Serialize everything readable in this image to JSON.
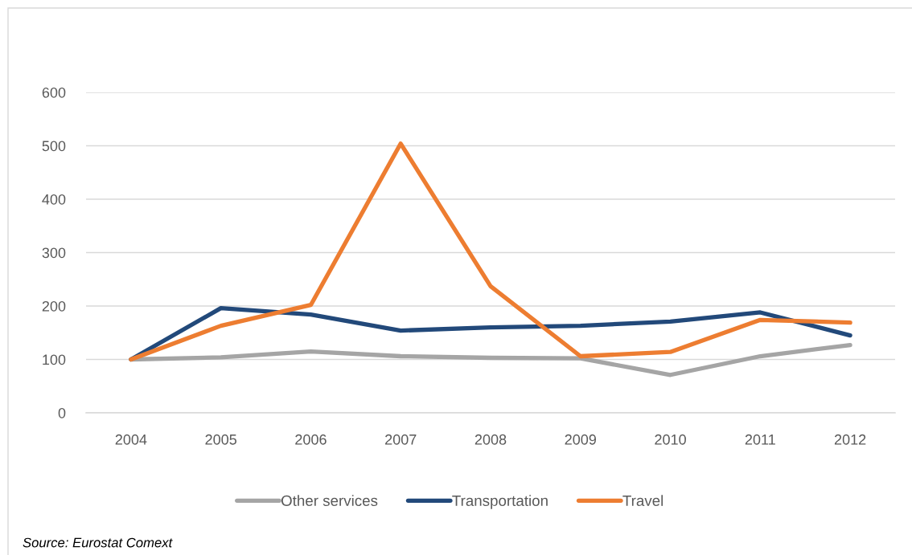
{
  "chart_data": {
    "type": "line",
    "categories": [
      "2004",
      "2005",
      "2006",
      "2007",
      "2008",
      "2009",
      "2010",
      "2011",
      "2012"
    ],
    "series": [
      {
        "name": "Other services",
        "color": "#a5a5a5",
        "values": [
          100,
          104,
          115,
          106,
          103,
          102,
          71,
          106,
          127
        ]
      },
      {
        "name": "Transportation",
        "color": "#22497a",
        "values": [
          100,
          196,
          184,
          154,
          160,
          163,
          171,
          188,
          145
        ]
      },
      {
        "name": "Travel",
        "color": "#ed7d31",
        "values": [
          100,
          163,
          202,
          504,
          237,
          106,
          114,
          174,
          169
        ]
      }
    ],
    "ylim": [
      0,
      600
    ],
    "yticks": [
      0,
      100,
      200,
      300,
      400,
      500,
      600
    ],
    "grid": "y",
    "legend": "bottom",
    "marker": "none",
    "line_style": "solid",
    "annotations": [
      "Source: Eurostat Comext"
    ]
  }
}
